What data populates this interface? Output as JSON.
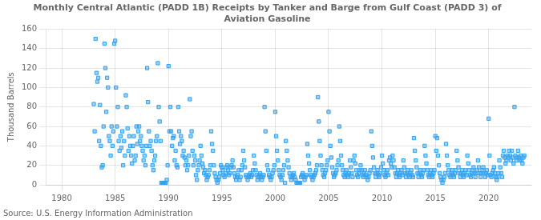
{
  "chart_data": {
    "type": "scatter",
    "title": "Monthly Central Atlantic (PADD 1B) Receipts by Tanker and Barge from Gulf Coast (PADD 3) of\nAviation Gasoline",
    "ylabel": "Thousand Barrels",
    "annotations": [
      "Source: U.S. Energy Information Administration"
    ],
    "marker": "square",
    "grid": true,
    "xlim": [
      1978.5,
      2024.0
    ],
    "ylim": [
      0,
      160
    ],
    "xticks": [
      1980,
      1985,
      1990,
      1995,
      2000,
      2005,
      2010,
      2015,
      2020
    ],
    "yticks": [
      0,
      20,
      40,
      60,
      80,
      100,
      120,
      140,
      160
    ],
    "x": [
      1983.0,
      1983.083,
      1983.167,
      1983.25,
      1983.333,
      1983.417,
      1983.5,
      1983.583,
      1983.667,
      1983.75,
      1983.833,
      1983.917,
      1984.0,
      1984.083,
      1984.167,
      1984.25,
      1984.333,
      1984.417,
      1984.5,
      1984.583,
      1984.667,
      1984.75,
      1984.833,
      1984.917,
      1985.0,
      1985.083,
      1985.167,
      1985.25,
      1985.333,
      1985.417,
      1985.5,
      1985.583,
      1985.667,
      1985.75,
      1985.833,
      1985.917,
      1986.0,
      1986.083,
      1986.167,
      1986.25,
      1986.333,
      1986.417,
      1986.5,
      1986.583,
      1986.667,
      1986.75,
      1986.833,
      1986.917,
      1987.0,
      1987.083,
      1987.167,
      1987.25,
      1987.333,
      1987.417,
      1987.5,
      1987.583,
      1987.667,
      1987.75,
      1987.833,
      1987.917,
      1988.0,
      1988.083,
      1988.167,
      1988.25,
      1988.333,
      1988.417,
      1988.5,
      1988.583,
      1988.667,
      1988.75,
      1988.833,
      1988.917,
      1989.0,
      1989.083,
      1989.167,
      1989.25,
      1989.333,
      1989.417,
      1989.5,
      1989.583,
      1989.667,
      1989.75,
      1989.833,
      1989.917,
      1990.0,
      1990.083,
      1990.167,
      1990.25,
      1990.333,
      1990.417,
      1990.5,
      1990.583,
      1990.667,
      1990.75,
      1990.833,
      1990.917,
      1991.0,
      1991.083,
      1991.167,
      1991.25,
      1991.333,
      1991.417,
      1991.5,
      1991.583,
      1991.667,
      1991.75,
      1991.833,
      1991.917,
      1992.0,
      1992.083,
      1992.167,
      1992.25,
      1992.333,
      1992.417,
      1992.5,
      1992.583,
      1992.667,
      1992.75,
      1992.833,
      1992.917,
      1993.0,
      1993.083,
      1993.167,
      1993.25,
      1993.333,
      1993.417,
      1993.5,
      1993.583,
      1993.667,
      1993.75,
      1993.833,
      1993.917,
      1994.0,
      1994.083,
      1994.167,
      1994.25,
      1994.333,
      1994.417,
      1994.5,
      1994.583,
      1994.667,
      1994.75,
      1994.833,
      1994.917,
      1995.0,
      1995.083,
      1995.167,
      1995.25,
      1995.333,
      1995.417,
      1995.5,
      1995.583,
      1995.667,
      1995.75,
      1995.833,
      1995.917,
      1996.0,
      1996.083,
      1996.167,
      1996.25,
      1996.333,
      1996.417,
      1996.5,
      1996.583,
      1996.667,
      1996.75,
      1996.833,
      1996.917,
      1997.0,
      1997.083,
      1997.167,
      1997.25,
      1997.333,
      1997.417,
      1997.5,
      1997.583,
      1997.667,
      1997.75,
      1997.833,
      1997.917,
      1998.0,
      1998.083,
      1998.167,
      1998.25,
      1998.333,
      1998.417,
      1998.5,
      1998.583,
      1998.667,
      1998.75,
      1998.833,
      1998.917,
      1999.0,
      1999.083,
      1999.167,
      1999.25,
      1999.333,
      1999.417,
      1999.5,
      1999.583,
      1999.667,
      1999.75,
      1999.833,
      1999.917,
      2000.0,
      2000.083,
      2000.167,
      2000.25,
      2000.333,
      2000.417,
      2000.5,
      2000.583,
      2000.667,
      2000.75,
      2000.833,
      2000.917,
      2001.0,
      2001.083,
      2001.167,
      2001.25,
      2001.333,
      2001.417,
      2001.5,
      2001.583,
      2001.667,
      2001.75,
      2001.833,
      2001.917,
      2002.0,
      2002.083,
      2002.167,
      2002.25,
      2002.333,
      2002.417,
      2002.5,
      2002.583,
      2002.667,
      2002.75,
      2002.833,
      2002.917,
      2003.0,
      2003.083,
      2003.167,
      2003.25,
      2003.333,
      2003.417,
      2003.5,
      2003.583,
      2003.667,
      2003.75,
      2003.833,
      2003.917,
      2004.0,
      2004.083,
      2004.167,
      2004.25,
      2004.333,
      2004.417,
      2004.5,
      2004.583,
      2004.667,
      2004.75,
      2004.833,
      2004.917,
      2005.0,
      2005.083,
      2005.167,
      2005.25,
      2005.333,
      2005.417,
      2005.5,
      2005.583,
      2005.667,
      2005.75,
      2005.833,
      2005.917,
      2006.0,
      2006.083,
      2006.167,
      2006.25,
      2006.333,
      2006.417,
      2006.5,
      2006.583,
      2006.667,
      2006.75,
      2006.833,
      2006.917,
      2007.0,
      2007.083,
      2007.167,
      2007.25,
      2007.333,
      2007.417,
      2007.5,
      2007.583,
      2007.667,
      2007.75,
      2007.833,
      2007.917,
      2008.0,
      2008.083,
      2008.167,
      2008.25,
      2008.333,
      2008.417,
      2008.5,
      2008.583,
      2008.667,
      2008.75,
      2008.833,
      2008.917,
      2009.0,
      2009.083,
      2009.167,
      2009.25,
      2009.333,
      2009.417,
      2009.5,
      2009.583,
      2009.667,
      2009.75,
      2009.833,
      2009.917,
      2010.0,
      2010.083,
      2010.167,
      2010.25,
      2010.333,
      2010.417,
      2010.5,
      2010.583,
      2010.667,
      2010.75,
      2010.833,
      2010.917,
      2011.0,
      2011.083,
      2011.167,
      2011.25,
      2011.333,
      2011.417,
      2011.5,
      2011.583,
      2011.667,
      2011.75,
      2011.833,
      2011.917,
      2012.0,
      2012.083,
      2012.167,
      2012.25,
      2012.333,
      2012.417,
      2012.5,
      2012.583,
      2012.667,
      2012.75,
      2012.833,
      2012.917,
      2013.0,
      2013.083,
      2013.167,
      2013.25,
      2013.333,
      2013.417,
      2013.5,
      2013.583,
      2013.667,
      2013.75,
      2013.833,
      2013.917,
      2014.0,
      2014.083,
      2014.167,
      2014.25,
      2014.333,
      2014.417,
      2014.5,
      2014.583,
      2014.667,
      2014.75,
      2014.833,
      2014.917,
      2015.0,
      2015.083,
      2015.167,
      2015.25,
      2015.333,
      2015.417,
      2015.5,
      2015.583,
      2015.667,
      2015.75,
      2015.833,
      2015.917,
      2016.0,
      2016.083,
      2016.167,
      2016.25,
      2016.333,
      2016.417,
      2016.5,
      2016.583,
      2016.667,
      2016.75,
      2016.833,
      2016.917,
      2017.0,
      2017.083,
      2017.167,
      2017.25,
      2017.333,
      2017.417,
      2017.5,
      2017.583,
      2017.667,
      2017.75,
      2017.833,
      2017.917,
      2018.0,
      2018.083,
      2018.167,
      2018.25,
      2018.333,
      2018.417,
      2018.5,
      2018.583,
      2018.667,
      2018.75,
      2018.833,
      2018.917,
      2019.0,
      2019.083,
      2019.167,
      2019.25,
      2019.333,
      2019.417,
      2019.5,
      2019.583,
      2019.667,
      2019.75,
      2019.833,
      2019.917,
      2020.0,
      2020.083,
      2020.167,
      2020.25,
      2020.333,
      2020.417,
      2020.5,
      2020.583,
      2020.667,
      2020.75,
      2020.833,
      2020.917,
      2021.0,
      2021.083,
      2021.167,
      2021.25,
      2021.333,
      2021.417,
      2021.5,
      2021.583,
      2021.667,
      2021.75,
      2021.833,
      2021.917,
      2022.0,
      2022.083,
      2022.167,
      2022.25,
      2022.333,
      2022.417,
      2022.5,
      2022.583,
      2022.667,
      2022.75,
      2022.833,
      2022.917,
      2023.0,
      2023.083,
      2023.167,
      2023.25,
      2023.333
    ],
    "values": [
      83,
      55,
      150,
      115,
      106,
      110,
      45,
      82,
      40,
      18,
      20,
      60,
      145,
      120,
      75,
      110,
      100,
      50,
      45,
      30,
      60,
      40,
      55,
      145,
      148,
      100,
      60,
      80,
      45,
      35,
      50,
      38,
      55,
      20,
      45,
      30,
      92,
      80,
      58,
      35,
      50,
      40,
      30,
      22,
      40,
      50,
      25,
      30,
      60,
      42,
      55,
      60,
      45,
      50,
      40,
      35,
      25,
      30,
      20,
      40,
      120,
      85,
      55,
      40,
      45,
      35,
      20,
      15,
      25,
      30,
      45,
      50,
      125,
      80,
      65,
      45,
      2,
      2,
      2,
      2,
      2,
      2,
      5,
      20,
      122,
      55,
      80,
      55,
      40,
      48,
      50,
      25,
      35,
      20,
      18,
      80,
      55,
      42,
      50,
      45,
      30,
      35,
      28,
      20,
      25,
      15,
      20,
      30,
      88,
      50,
      55,
      35,
      20,
      30,
      25,
      10,
      5,
      15,
      20,
      25,
      40,
      30,
      22,
      18,
      12,
      15,
      10,
      5,
      8,
      10,
      15,
      20,
      55,
      42,
      35,
      20,
      12,
      8,
      5,
      2,
      5,
      8,
      12,
      20,
      18,
      15,
      10,
      8,
      12,
      18,
      20,
      15,
      10,
      12,
      18,
      20,
      25,
      18,
      12,
      8,
      5,
      8,
      10,
      15,
      5,
      8,
      15,
      20,
      35,
      25,
      18,
      10,
      8,
      5,
      8,
      10,
      12,
      8,
      10,
      15,
      30,
      22,
      15,
      10,
      5,
      8,
      10,
      12,
      8,
      5,
      8,
      10,
      80,
      55,
      35,
      20,
      15,
      10,
      8,
      5,
      8,
      12,
      15,
      20,
      75,
      50,
      35,
      25,
      15,
      10,
      8,
      5,
      10,
      15,
      20,
      2,
      45,
      35,
      25,
      18,
      12,
      8,
      5,
      8,
      10,
      12,
      8,
      5,
      2,
      2,
      2,
      2,
      2,
      8,
      10,
      12,
      8,
      5,
      8,
      10,
      42,
      30,
      22,
      15,
      10,
      8,
      5,
      8,
      10,
      12,
      15,
      20,
      90,
      65,
      45,
      30,
      20,
      15,
      10,
      8,
      12,
      15,
      20,
      25,
      75,
      55,
      40,
      28,
      18,
      12,
      8,
      10,
      12,
      15,
      20,
      25,
      60,
      45,
      30,
      20,
      15,
      10,
      8,
      12,
      15,
      10,
      8,
      12,
      25,
      18,
      12,
      8,
      25,
      30,
      22,
      15,
      10,
      8,
      12,
      15,
      20,
      15,
      10,
      8,
      12,
      15,
      10,
      8,
      5,
      8,
      12,
      15,
      55,
      40,
      28,
      18,
      12,
      8,
      12,
      15,
      10,
      8,
      12,
      18,
      30,
      22,
      15,
      10,
      8,
      12,
      15,
      10,
      25,
      28,
      22,
      18,
      30,
      25,
      18,
      12,
      8,
      12,
      15,
      10,
      8,
      12,
      15,
      10,
      25,
      18,
      12,
      8,
      12,
      15,
      10,
      8,
      12,
      15,
      10,
      8,
      48,
      35,
      25,
      18,
      12,
      8,
      12,
      15,
      10,
      8,
      12,
      15,
      40,
      30,
      22,
      15,
      10,
      8,
      12,
      15,
      10,
      8,
      12,
      15,
      50,
      35,
      48,
      30,
      20,
      12,
      8,
      5,
      2,
      5,
      8,
      12,
      42,
      30,
      20,
      15,
      10,
      8,
      12,
      15,
      10,
      8,
      12,
      15,
      35,
      25,
      18,
      12,
      8,
      12,
      15,
      10,
      8,
      12,
      15,
      10,
      30,
      22,
      15,
      10,
      8,
      12,
      15,
      18,
      12,
      8,
      12,
      15,
      25,
      18,
      12,
      8,
      12,
      15,
      18,
      12,
      8,
      12,
      15,
      10,
      68,
      30,
      10,
      8,
      12,
      15,
      18,
      12,
      8,
      5,
      8,
      12,
      25,
      18,
      12,
      8,
      30,
      35,
      28,
      22,
      25,
      30,
      28,
      35,
      30,
      25,
      35,
      28,
      22,
      80,
      30,
      25,
      28,
      35,
      28,
      25,
      30,
      25,
      22,
      28,
      30
    ]
  }
}
